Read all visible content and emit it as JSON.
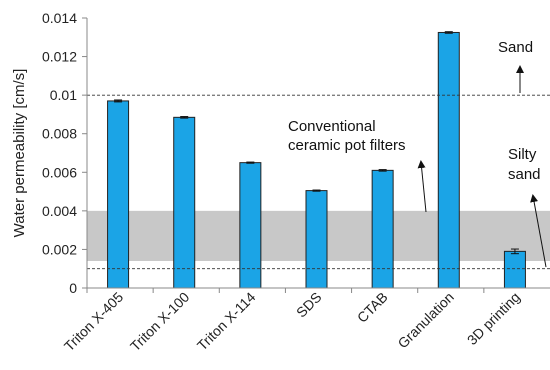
{
  "chart_data": {
    "type": "bar",
    "ylabel": "Water permeability [cm/s]",
    "xlabel": "",
    "ylim": [
      0,
      0.014
    ],
    "yticks": [
      "0",
      "0.002",
      "0.004",
      "0.006",
      "0.008",
      "0.01",
      "0.012",
      "0.014"
    ],
    "grid": false,
    "bar_color": "#1ba4e6",
    "bar_edge_color": "#222222",
    "band_color": "#c8c8c8",
    "categories": [
      "Triton X-405",
      "Triton X-100",
      "Triton X-114",
      "SDS",
      "CTAB",
      "Granulation",
      "3D printing"
    ],
    "series": [
      {
        "values": [
          0.0097,
          0.00885,
          0.0065,
          0.00505,
          0.0061,
          0.01325,
          0.0019
        ],
        "errors": [
          5e-05,
          4e-05,
          3e-05,
          3e-05,
          4e-05,
          4e-05,
          0.00012
        ]
      }
    ],
    "reference_lines": [
      {
        "y": 0.01,
        "label": "Sand"
      },
      {
        "y": 0.001,
        "label_lines": [
          "Silty",
          "sand"
        ]
      }
    ],
    "band": {
      "y0": 0.0014,
      "y1": 0.004,
      "label_lines": [
        "Conventional",
        "ceramic pot filters"
      ]
    }
  }
}
